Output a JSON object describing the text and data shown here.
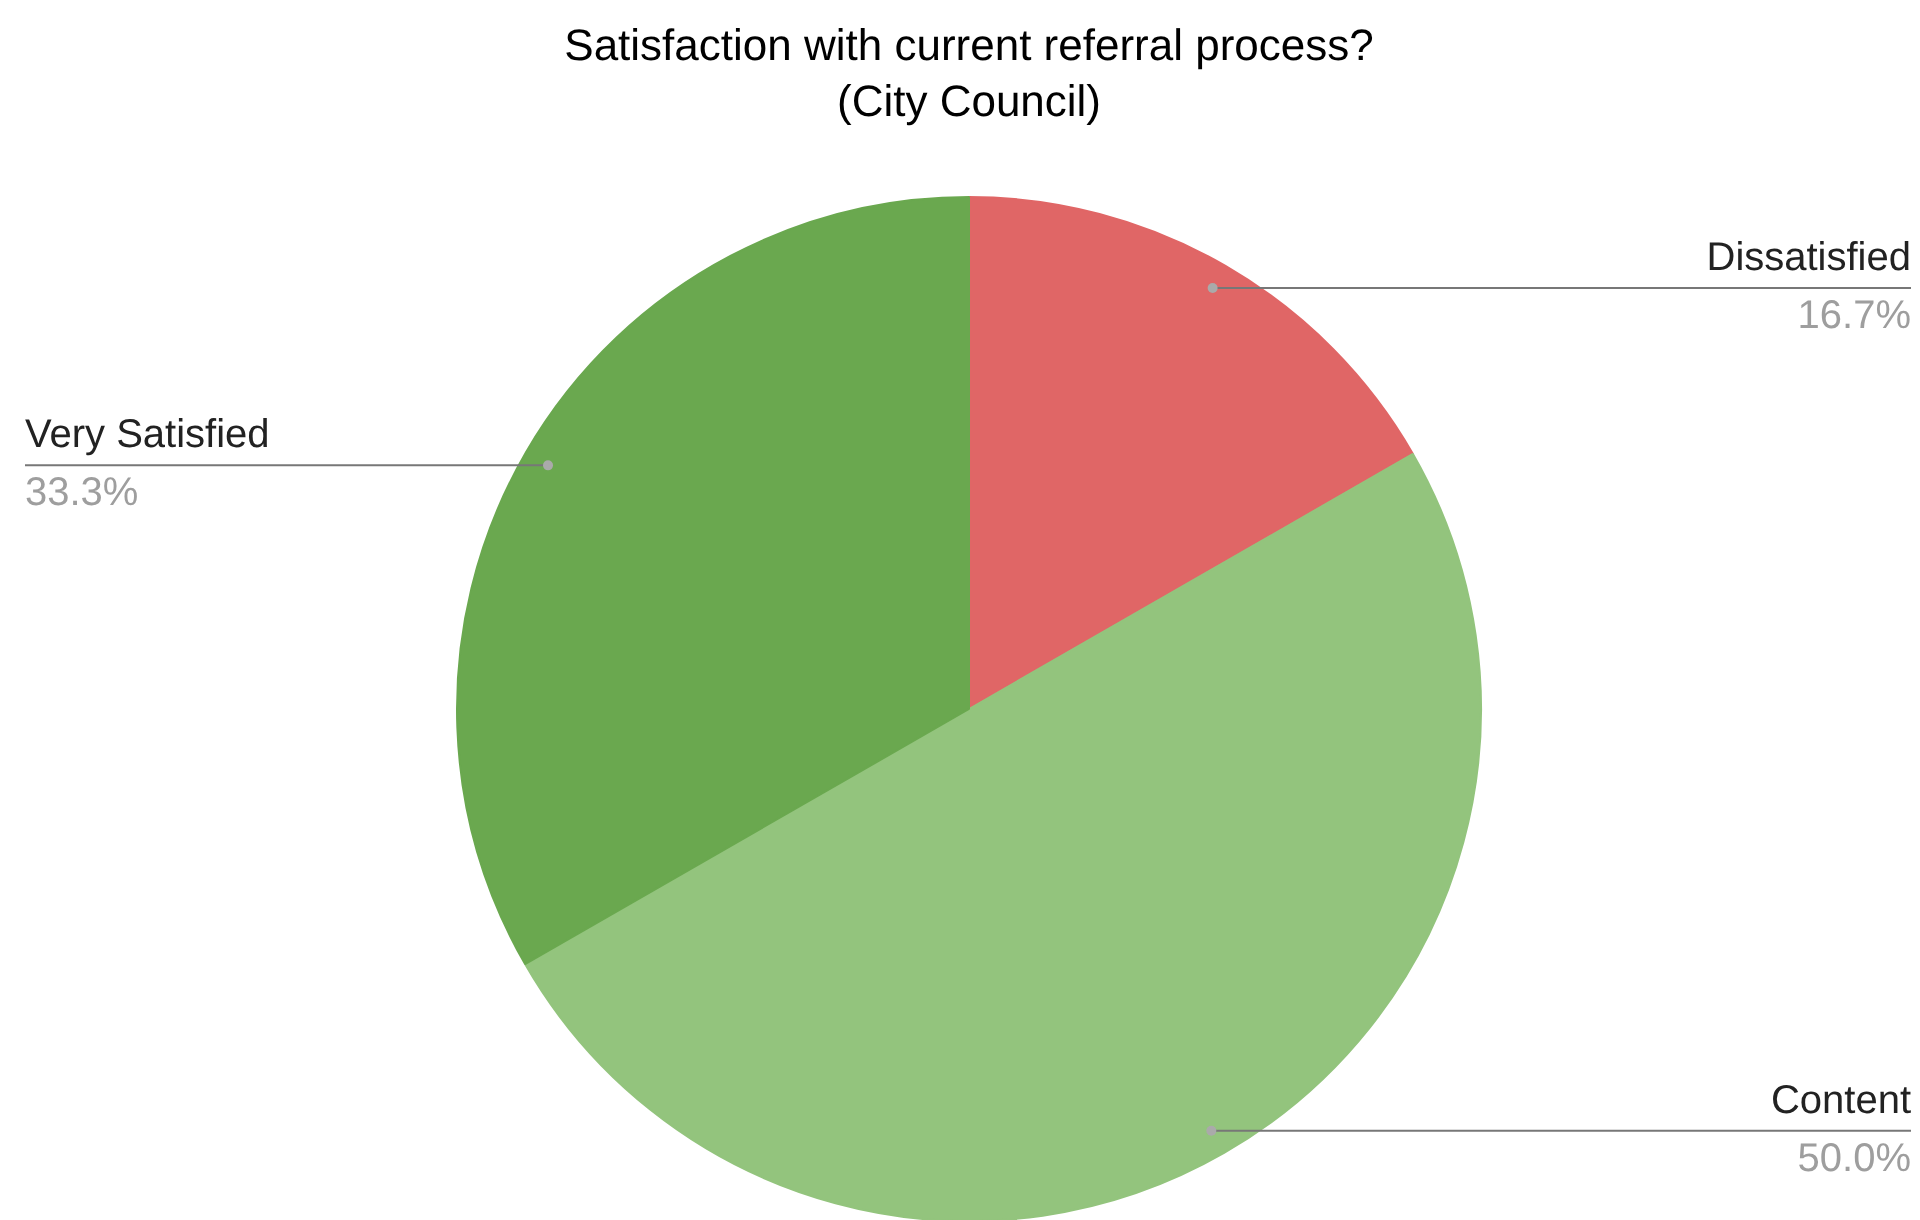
{
  "chart_data": {
    "type": "pie",
    "title": "Satisfaction with current referral process?\n(City Council)",
    "categories": [
      "Dissatisfied",
      "Content",
      "Very Satisfied"
    ],
    "values": [
      16.7,
      50.0,
      33.3
    ],
    "colors": [
      "#e06666",
      "#93c47d",
      "#6aa84f"
    ],
    "value_labels": [
      "16.7%",
      "50.0%",
      "33.3%"
    ]
  }
}
